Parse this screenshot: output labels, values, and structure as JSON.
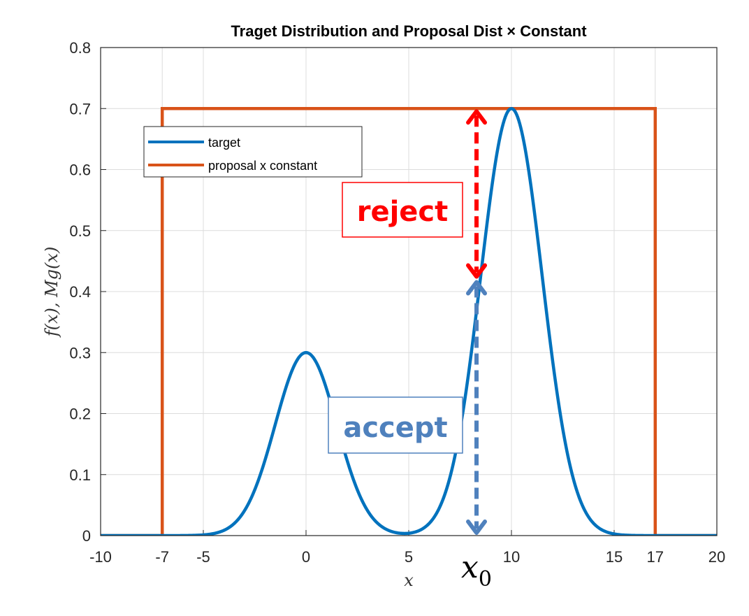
{
  "chart_data": {
    "type": "line",
    "title": "Traget Distribution and Proposal Dist × Constant",
    "xlabel": "x",
    "ylabel": "f(x), Mg(x)",
    "xlim": [
      -10,
      20
    ],
    "ylim": [
      0,
      0.8
    ],
    "xticks": [
      "-10",
      "-7",
      "-5",
      "0",
      "5",
      "10",
      "15",
      "17",
      "20"
    ],
    "yticks": [
      "0",
      "0.1",
      "0.2",
      "0.3",
      "0.4",
      "0.5",
      "0.6",
      "0.7",
      "0.8"
    ],
    "grid": true,
    "legend_position": "top-left",
    "series": [
      {
        "name": "target",
        "color": "#0072BD",
        "formula": "0.3·exp(-x²/(2·1.5²)) + 0.7·exp(-(x-10)²/(2·1.5²))"
      },
      {
        "name": "proposal x constant",
        "color": "#D95319",
        "points": [
          [
            -10,
            0
          ],
          [
            -7,
            0
          ],
          [
            -7,
            0.7
          ],
          [
            17,
            0.7
          ],
          [
            17,
            0
          ],
          [
            20,
            0
          ]
        ]
      }
    ],
    "annotations": {
      "x0_value": 8.3,
      "x0_label": "x",
      "x0_subscript": "0",
      "reject": {
        "text": "reject",
        "color": "#FF0000",
        "from": 0.7,
        "to": 0.42
      },
      "accept": {
        "text": "accept",
        "color": "#4F81BD",
        "from": 0.42,
        "to": 0
      }
    }
  }
}
